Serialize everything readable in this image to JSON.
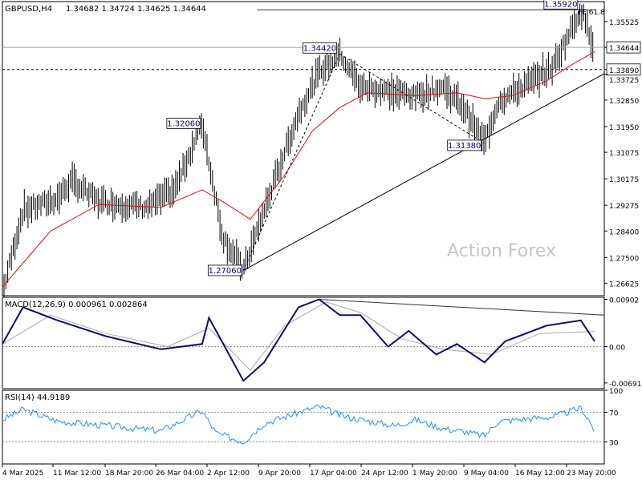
{
  "chart_data": [
    {
      "type": "candlestick",
      "symbol_label": "GBPUSD,H4",
      "ohlc_label": "1.34682 1.34724 1.34625 1.34644",
      "watermark": "Action Forex",
      "ylim": [
        1.262,
        1.362
      ],
      "y_ticks": [
        "1.35525",
        "1.34644",
        "1.33890",
        "1.33725",
        "1.32850",
        "1.31950",
        "1.31075",
        "1.30175",
        "1.29275",
        "1.28400",
        "1.27500",
        "1.26625"
      ],
      "x_ticks": [
        "4 Mar 2025",
        "11 Mar 12:00",
        "18 Mar 20:00",
        "26 Mar 04:00",
        "2 Apr 12:00",
        "9 Apr 20:00",
        "17 Apr 04:00",
        "24 Apr 12:00",
        "1 May 20:00",
        "9 May 04:00",
        "16 May 12:00",
        "23 May 20:00"
      ],
      "current_price": "1.34644",
      "horizontal_level": "1.33890",
      "fe_label": "FE 61.8",
      "pivot_labels": [
        {
          "label": "1.32060",
          "date": "1 Apr 2025",
          "value": 1.3206
        },
        {
          "label": "1.27060",
          "date": "7 Apr 2025",
          "value": 1.2706
        },
        {
          "label": "1.34420",
          "date": "21 Apr 2025",
          "value": 1.3442
        },
        {
          "label": "1.31380",
          "date": "12 May 2025",
          "value": 1.3138
        },
        {
          "label": "1.35920",
          "date": "26 May 2025",
          "value": 1.3592
        }
      ],
      "price_path": [
        {
          "date": "3 Mar 2025",
          "value": 1.263
        },
        {
          "date": "6 Mar 2025",
          "value": 1.291
        },
        {
          "date": "11 Mar 2025",
          "value": 1.295
        },
        {
          "date": "13 Mar 2025",
          "value": 1.301
        },
        {
          "date": "17 Mar 2025",
          "value": 1.294
        },
        {
          "date": "24 Mar 2025",
          "value": 1.292
        },
        {
          "date": "28 Mar 2025",
          "value": 1.298
        },
        {
          "date": "1 Apr 2025",
          "value": 1.3206
        },
        {
          "date": "4 Apr 2025",
          "value": 1.282
        },
        {
          "date": "7 Apr 2025",
          "value": 1.2706
        },
        {
          "date": "10 Apr 2025",
          "value": 1.291
        },
        {
          "date": "15 Apr 2025",
          "value": 1.324
        },
        {
          "date": "18 Apr 2025",
          "value": 1.338
        },
        {
          "date": "21 Apr 2025",
          "value": 1.3442
        },
        {
          "date": "24 Apr 2025",
          "value": 1.333
        },
        {
          "date": "29 Apr 2025",
          "value": 1.331
        },
        {
          "date": "2 May 2025",
          "value": 1.33
        },
        {
          "date": "6 May 2025",
          "value": 1.333
        },
        {
          "date": "9 May 2025",
          "value": 1.326
        },
        {
          "date": "12 May 2025",
          "value": 1.3138
        },
        {
          "date": "14 May 2025",
          "value": 1.328
        },
        {
          "date": "19 May 2025",
          "value": 1.335
        },
        {
          "date": "22 May 2025",
          "value": 1.34
        },
        {
          "date": "26 May 2025",
          "value": 1.3592
        },
        {
          "date": "28 May 2025",
          "value": 1.3464
        }
      ],
      "ema": [
        {
          "date": "3 Mar 2025",
          "value": 1.265
        },
        {
          "date": "10 Mar 2025",
          "value": 1.284
        },
        {
          "date": "17 Mar 2025",
          "value": 1.293
        },
        {
          "date": "26 Mar 2025",
          "value": 1.292
        },
        {
          "date": "1 Apr 2025",
          "value": 1.298
        },
        {
          "date": "4 Apr 2025",
          "value": 1.294
        },
        {
          "date": "8 Apr 2025",
          "value": 1.288
        },
        {
          "date": "13 Apr 2025",
          "value": 1.303
        },
        {
          "date": "17 Apr 2025",
          "value": 1.318
        },
        {
          "date": "21 Apr 2025",
          "value": 1.326
        },
        {
          "date": "25 Apr 2025",
          "value": 1.331
        },
        {
          "date": "2 May 2025",
          "value": 1.33
        },
        {
          "date": "8 May 2025",
          "value": 1.331
        },
        {
          "date": "12 May 2025",
          "value": 1.329
        },
        {
          "date": "16 May 2025",
          "value": 1.33
        },
        {
          "date": "21 May 2025",
          "value": 1.335
        },
        {
          "date": "25 May 2025",
          "value": 1.341
        },
        {
          "date": "28 May 2025",
          "value": 1.345
        }
      ],
      "trendlines": [
        {
          "name": "rising support",
          "points": [
            {
              "date": "7 Apr 2025",
              "value": 1.2706
            },
            {
              "date": "28 May 2025",
              "value": 1.3375
            }
          ]
        },
        {
          "name": "fe resistance",
          "points": [
            {
              "date": "9 Apr 2025",
              "value": 1.3592
            },
            {
              "date": "28 May 2025",
              "value": 1.3592
            }
          ]
        },
        {
          "name": "projection leg 1",
          "points": [
            {
              "date": "7 Apr 2025",
              "value": 1.2706
            },
            {
              "date": "21 Apr 2025",
              "value": 1.3442
            }
          ]
        },
        {
          "name": "projection leg 2",
          "points": [
            {
              "date": "21 Apr 2025",
              "value": 1.3442
            },
            {
              "date": "12 May 2025",
              "value": 1.3138
            }
          ]
        }
      ]
    },
    {
      "type": "line",
      "label": "MACD(12,26,9) 0.000961 0.002864",
      "ylim": [
        -0.008,
        0.0094
      ],
      "y_ticks": [
        "0.00902",
        "0.00",
        "-0.006915"
      ],
      "zero_level": 0.0,
      "main": [
        {
          "date": "3 Mar 2025",
          "value": 0.0005
        },
        {
          "date": "6 Mar 2025",
          "value": 0.0075
        },
        {
          "date": "11 Mar 2025",
          "value": 0.005
        },
        {
          "date": "18 Mar 2025",
          "value": 0.002
        },
        {
          "date": "26 Mar 2025",
          "value": -0.0005
        },
        {
          "date": "1 Apr 2025",
          "value": 0.0005
        },
        {
          "date": "2 Apr 2025",
          "value": 0.0055
        },
        {
          "date": "7 Apr 2025",
          "value": -0.0065
        },
        {
          "date": "10 Apr 2025",
          "value": -0.003
        },
        {
          "date": "15 Apr 2025",
          "value": 0.0075
        },
        {
          "date": "18 Apr 2025",
          "value": 0.009
        },
        {
          "date": "21 Apr 2025",
          "value": 0.006
        },
        {
          "date": "24 Apr 2025",
          "value": 0.006
        },
        {
          "date": "28 Apr 2025",
          "value": 0.0
        },
        {
          "date": "1 May 2025",
          "value": 0.003
        },
        {
          "date": "5 May 2025",
          "value": -0.0015
        },
        {
          "date": "8 May 2025",
          "value": 0.0005
        },
        {
          "date": "12 May 2025",
          "value": -0.003
        },
        {
          "date": "15 May 2025",
          "value": 0.001
        },
        {
          "date": "21 May 2025",
          "value": 0.004
        },
        {
          "date": "26 May 2025",
          "value": 0.005
        },
        {
          "date": "28 May 2025",
          "value": 0.001
        }
      ],
      "signal": [
        {
          "date": "3 Mar 2025",
          "value": 0.0005
        },
        {
          "date": "10 Mar 2025",
          "value": 0.006
        },
        {
          "date": "18 Mar 2025",
          "value": 0.0025
        },
        {
          "date": "27 Mar 2025",
          "value": 0.0
        },
        {
          "date": "2 Apr 2025",
          "value": 0.0035
        },
        {
          "date": "8 Apr 2025",
          "value": -0.0045
        },
        {
          "date": "13 Apr 2025",
          "value": 0.004
        },
        {
          "date": "19 Apr 2025",
          "value": 0.0085
        },
        {
          "date": "24 Apr 2025",
          "value": 0.0065
        },
        {
          "date": "30 Apr 2025",
          "value": 0.0015
        },
        {
          "date": "6 May 2025",
          "value": -0.0005
        },
        {
          "date": "13 May 2025",
          "value": -0.0015
        },
        {
          "date": "20 May 2025",
          "value": 0.0025
        },
        {
          "date": "28 May 2025",
          "value": 0.0029
        }
      ],
      "trendline": [
        {
          "date": "18 Apr 2025",
          "value": 0.009
        },
        {
          "date": "28 May 2025",
          "value": 0.006
        }
      ]
    },
    {
      "type": "line",
      "label": "RSI(14) 44.9189",
      "ylim": [
        0,
        100
      ],
      "y_ticks": [
        "100",
        "70",
        "30",
        "0"
      ],
      "levels": [
        70,
        30
      ],
      "values": [
        {
          "date": "3 Mar 2025",
          "value": 60
        },
        {
          "date": "6 Mar 2025",
          "value": 74
        },
        {
          "date": "11 Mar 2025",
          "value": 58
        },
        {
          "date": "18 Mar 2025",
          "value": 52
        },
        {
          "date": "26 Mar 2025",
          "value": 45
        },
        {
          "date": "1 Apr 2025",
          "value": 72
        },
        {
          "date": "3 Apr 2025",
          "value": 42
        },
        {
          "date": "7 Apr 2025",
          "value": 30
        },
        {
          "date": "10 Apr 2025",
          "value": 55
        },
        {
          "date": "15 Apr 2025",
          "value": 70
        },
        {
          "date": "18 Apr 2025",
          "value": 78
        },
        {
          "date": "21 Apr 2025",
          "value": 66
        },
        {
          "date": "24 Apr 2025",
          "value": 60
        },
        {
          "date": "29 Apr 2025",
          "value": 52
        },
        {
          "date": "2 May 2025",
          "value": 60
        },
        {
          "date": "6 May 2025",
          "value": 48
        },
        {
          "date": "9 May 2025",
          "value": 44
        },
        {
          "date": "12 May 2025",
          "value": 38
        },
        {
          "date": "14 May 2025",
          "value": 58
        },
        {
          "date": "19 May 2025",
          "value": 62
        },
        {
          "date": "22 May 2025",
          "value": 64
        },
        {
          "date": "26 May 2025",
          "value": 76
        },
        {
          "date": "27 May 2025",
          "value": 62
        },
        {
          "date": "28 May 2025",
          "value": 45
        }
      ]
    }
  ],
  "colors": {
    "price": "#000000",
    "ema": "#dd1111",
    "macd_main": "#0a1464",
    "macd_signal": "#a8a8a8",
    "rsi": "#1e90ff",
    "label_text": "#00008b",
    "watermark": "#c6c6c6"
  }
}
